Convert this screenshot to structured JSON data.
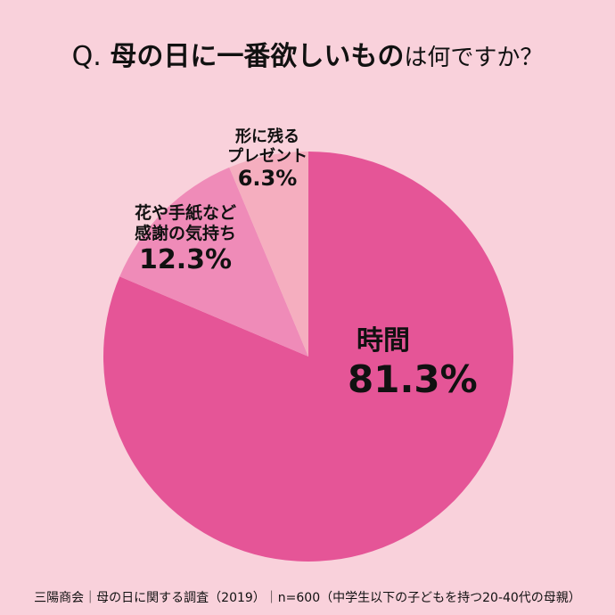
{
  "title": {
    "prefix": "Q.",
    "bold": "母の日に一番欲しいもの",
    "rest": "は何ですか？"
  },
  "chart_data": {
    "type": "pie",
    "start": "top",
    "direction": "clockwise",
    "slices": [
      {
        "label": "時間",
        "value": 81.3,
        "display": "81.3%",
        "color": "#e55597"
      },
      {
        "label_lines": [
          "花や手紙など",
          "感謝の気持ち"
        ],
        "value": 12.3,
        "display": "12.3%",
        "color": "#ef8bb8"
      },
      {
        "label_lines": [
          "形に残る",
          "プレゼント"
        ],
        "value": 6.3,
        "display": "6.3%",
        "color": "#f5aebf"
      }
    ]
  },
  "footer": "三陽商会｜母の日に関する調査（2019）｜n=600（中学生以下の子どもを持つ20-40代の母親）",
  "colors": {
    "background": "#f9d1db"
  }
}
